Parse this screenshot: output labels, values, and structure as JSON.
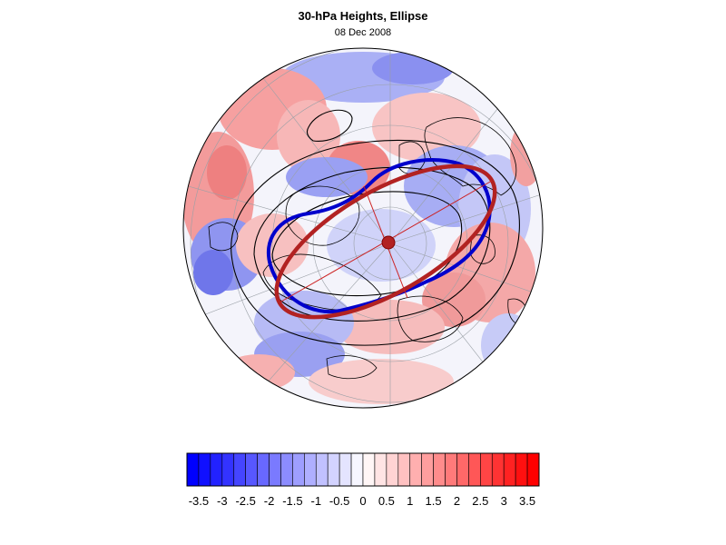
{
  "figure": {
    "title": "30-hPa Heights, Ellipse",
    "subtitle": "08 Dec 2008"
  },
  "colors": {
    "negative_max": "#0000ff",
    "neutral": "#ffffff",
    "positive_max": "#ff0000",
    "observed_contour": "#0000cc",
    "fitted_ellipse": "#b22222",
    "height_contours": "#000000",
    "coastlines": "#000000",
    "graticule": "#9aa0a6"
  },
  "projection": "north-polar-stereographic",
  "colorbar": {
    "levels": [
      -3.75,
      -3.5,
      -3.25,
      -3,
      -2.75,
      -2.5,
      -2.25,
      -2,
      -1.75,
      -1.5,
      -1.25,
      -1,
      -0.75,
      -0.5,
      -0.25,
      0,
      0.25,
      0.5,
      0.75,
      1,
      1.25,
      1.5,
      1.75,
      2,
      2.25,
      2.5,
      2.75,
      3,
      3.25,
      3.5,
      3.75
    ],
    "tick_values": [
      -3.5,
      -3,
      -2.5,
      -2,
      -1.5,
      -1,
      -0.5,
      0,
      0.5,
      1,
      1.5,
      2,
      2.5,
      3,
      3.5
    ],
    "tick_labels": [
      "-3.5",
      "-3",
      "-2.5",
      "-2",
      "-1.5",
      "-1",
      "-0.5",
      "0",
      "0.5",
      "1",
      "1.5",
      "2",
      "2.5",
      "3",
      "3.5"
    ]
  }
}
